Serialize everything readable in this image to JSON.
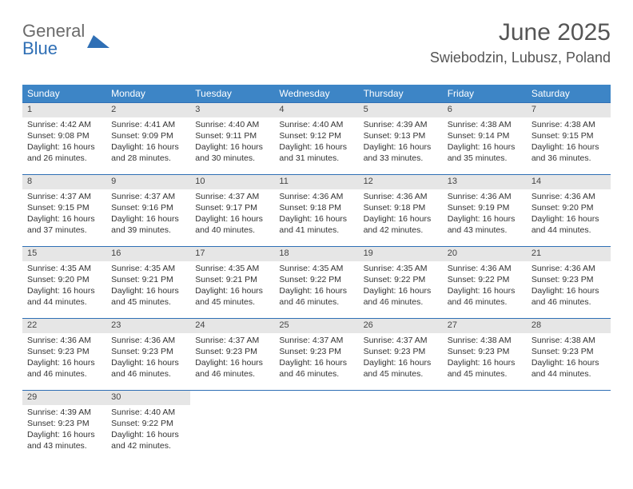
{
  "logo": {
    "word1": "General",
    "word2": "Blue"
  },
  "header": {
    "title": "June 2025",
    "location": "Swiebodzin, Lubusz, Poland"
  },
  "colors": {
    "header_bg": "#3d85c6",
    "header_fg": "#ffffff",
    "daynum_bg": "#e6e6e6",
    "row_border": "#2f6fb5",
    "logo_gray": "#6b6b6b",
    "logo_blue": "#2f6fb5"
  },
  "calendar": {
    "type": "table",
    "columns": [
      "Sunday",
      "Monday",
      "Tuesday",
      "Wednesday",
      "Thursday",
      "Friday",
      "Saturday"
    ],
    "first_day_column": 0,
    "days_in_month": 30,
    "days": [
      {
        "n": 1,
        "sunrise": "4:42 AM",
        "sunset": "9:08 PM",
        "daylight": "16 hours and 26 minutes."
      },
      {
        "n": 2,
        "sunrise": "4:41 AM",
        "sunset": "9:09 PM",
        "daylight": "16 hours and 28 minutes."
      },
      {
        "n": 3,
        "sunrise": "4:40 AM",
        "sunset": "9:11 PM",
        "daylight": "16 hours and 30 minutes."
      },
      {
        "n": 4,
        "sunrise": "4:40 AM",
        "sunset": "9:12 PM",
        "daylight": "16 hours and 31 minutes."
      },
      {
        "n": 5,
        "sunrise": "4:39 AM",
        "sunset": "9:13 PM",
        "daylight": "16 hours and 33 minutes."
      },
      {
        "n": 6,
        "sunrise": "4:38 AM",
        "sunset": "9:14 PM",
        "daylight": "16 hours and 35 minutes."
      },
      {
        "n": 7,
        "sunrise": "4:38 AM",
        "sunset": "9:15 PM",
        "daylight": "16 hours and 36 minutes."
      },
      {
        "n": 8,
        "sunrise": "4:37 AM",
        "sunset": "9:15 PM",
        "daylight": "16 hours and 37 minutes."
      },
      {
        "n": 9,
        "sunrise": "4:37 AM",
        "sunset": "9:16 PM",
        "daylight": "16 hours and 39 minutes."
      },
      {
        "n": 10,
        "sunrise": "4:37 AM",
        "sunset": "9:17 PM",
        "daylight": "16 hours and 40 minutes."
      },
      {
        "n": 11,
        "sunrise": "4:36 AM",
        "sunset": "9:18 PM",
        "daylight": "16 hours and 41 minutes."
      },
      {
        "n": 12,
        "sunrise": "4:36 AM",
        "sunset": "9:18 PM",
        "daylight": "16 hours and 42 minutes."
      },
      {
        "n": 13,
        "sunrise": "4:36 AM",
        "sunset": "9:19 PM",
        "daylight": "16 hours and 43 minutes."
      },
      {
        "n": 14,
        "sunrise": "4:36 AM",
        "sunset": "9:20 PM",
        "daylight": "16 hours and 44 minutes."
      },
      {
        "n": 15,
        "sunrise": "4:35 AM",
        "sunset": "9:20 PM",
        "daylight": "16 hours and 44 minutes."
      },
      {
        "n": 16,
        "sunrise": "4:35 AM",
        "sunset": "9:21 PM",
        "daylight": "16 hours and 45 minutes."
      },
      {
        "n": 17,
        "sunrise": "4:35 AM",
        "sunset": "9:21 PM",
        "daylight": "16 hours and 45 minutes."
      },
      {
        "n": 18,
        "sunrise": "4:35 AM",
        "sunset": "9:22 PM",
        "daylight": "16 hours and 46 minutes."
      },
      {
        "n": 19,
        "sunrise": "4:35 AM",
        "sunset": "9:22 PM",
        "daylight": "16 hours and 46 minutes."
      },
      {
        "n": 20,
        "sunrise": "4:36 AM",
        "sunset": "9:22 PM",
        "daylight": "16 hours and 46 minutes."
      },
      {
        "n": 21,
        "sunrise": "4:36 AM",
        "sunset": "9:23 PM",
        "daylight": "16 hours and 46 minutes."
      },
      {
        "n": 22,
        "sunrise": "4:36 AM",
        "sunset": "9:23 PM",
        "daylight": "16 hours and 46 minutes."
      },
      {
        "n": 23,
        "sunrise": "4:36 AM",
        "sunset": "9:23 PM",
        "daylight": "16 hours and 46 minutes."
      },
      {
        "n": 24,
        "sunrise": "4:37 AM",
        "sunset": "9:23 PM",
        "daylight": "16 hours and 46 minutes."
      },
      {
        "n": 25,
        "sunrise": "4:37 AM",
        "sunset": "9:23 PM",
        "daylight": "16 hours and 46 minutes."
      },
      {
        "n": 26,
        "sunrise": "4:37 AM",
        "sunset": "9:23 PM",
        "daylight": "16 hours and 45 minutes."
      },
      {
        "n": 27,
        "sunrise": "4:38 AM",
        "sunset": "9:23 PM",
        "daylight": "16 hours and 45 minutes."
      },
      {
        "n": 28,
        "sunrise": "4:38 AM",
        "sunset": "9:23 PM",
        "daylight": "16 hours and 44 minutes."
      },
      {
        "n": 29,
        "sunrise": "4:39 AM",
        "sunset": "9:23 PM",
        "daylight": "16 hours and 43 minutes."
      },
      {
        "n": 30,
        "sunrise": "4:40 AM",
        "sunset": "9:22 PM",
        "daylight": "16 hours and 42 minutes."
      }
    ],
    "labels": {
      "sunrise": "Sunrise:",
      "sunset": "Sunset:",
      "daylight": "Daylight:"
    }
  }
}
